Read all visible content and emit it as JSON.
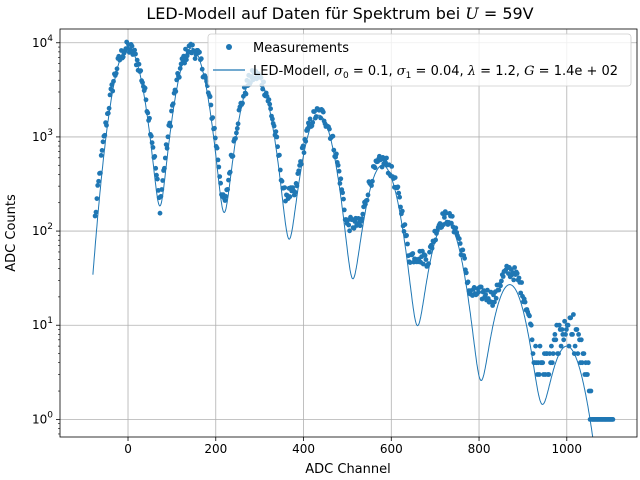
{
  "chart_data": {
    "type": "scatter",
    "title_prefix": "LED-Modell auf Daten für Spektrum bei ",
    "title_math_var": "U",
    "title_math_rest": " = 59V",
    "xlabel": "ADC Channel",
    "ylabel": "ADC Counts",
    "xlim": [
      -155,
      1160
    ],
    "ylim": [
      0.65,
      14000
    ],
    "yscale": "log",
    "grid": true,
    "legend_position": "top-right",
    "x_ticks": [
      0,
      200,
      400,
      600,
      800,
      1000
    ],
    "y_tick_labels": [
      {
        "value": 1,
        "base": "10",
        "exp": "0"
      },
      {
        "value": 10,
        "base": "10",
        "exp": "1"
      },
      {
        "value": 100,
        "base": "10",
        "exp": "2"
      },
      {
        "value": 1000,
        "base": "10",
        "exp": "3"
      },
      {
        "value": 10000,
        "base": "10",
        "exp": "4"
      }
    ],
    "series": [
      {
        "name": "Measurements",
        "kind": "points",
        "color": "#1f77b4",
        "peaks": [
          {
            "x": 0,
            "y": 8800
          },
          {
            "x": 145,
            "y": 8600
          },
          {
            "x": 290,
            "y": 4500
          },
          {
            "x": 435,
            "y": 1800
          },
          {
            "x": 580,
            "y": 550
          },
          {
            "x": 725,
            "y": 140
          },
          {
            "x": 870,
            "y": 38
          },
          {
            "x": 1000,
            "y": 9
          }
        ],
        "valleys": [
          {
            "x": 75,
            "y": 45
          },
          {
            "x": 220,
            "y": 210
          },
          {
            "x": 365,
            "y": 250
          },
          {
            "x": 510,
            "y": 120
          },
          {
            "x": 655,
            "y": 55
          },
          {
            "x": 800,
            "y": 22
          },
          {
            "x": 940,
            "y": 4
          }
        ],
        "floor": {
          "x_start": -75,
          "x_end": 1105,
          "y": 1
        }
      },
      {
        "name_prefix": "LED-Modell, ",
        "name_math": [
          {
            "sym": "σ",
            "sub": "0",
            "val": " = 0.1"
          },
          {
            "sym": "σ",
            "sub": "1",
            "val": " = 0.04"
          },
          {
            "sym": "λ",
            "sub": "",
            "val": " = 1.2"
          },
          {
            "sym": "G",
            "sub": "",
            "val": " = 1.4e + 02"
          }
        ],
        "kind": "line",
        "color": "#1f77b4",
        "peaks": [
          {
            "x": 0,
            "y": 8900
          },
          {
            "x": 145,
            "y": 8800
          },
          {
            "x": 290,
            "y": 4600
          },
          {
            "x": 435,
            "y": 1700
          },
          {
            "x": 580,
            "y": 500
          },
          {
            "x": 725,
            "y": 125
          },
          {
            "x": 870,
            "y": 27
          },
          {
            "x": 1000,
            "y": 6
          }
        ]
      }
    ]
  }
}
